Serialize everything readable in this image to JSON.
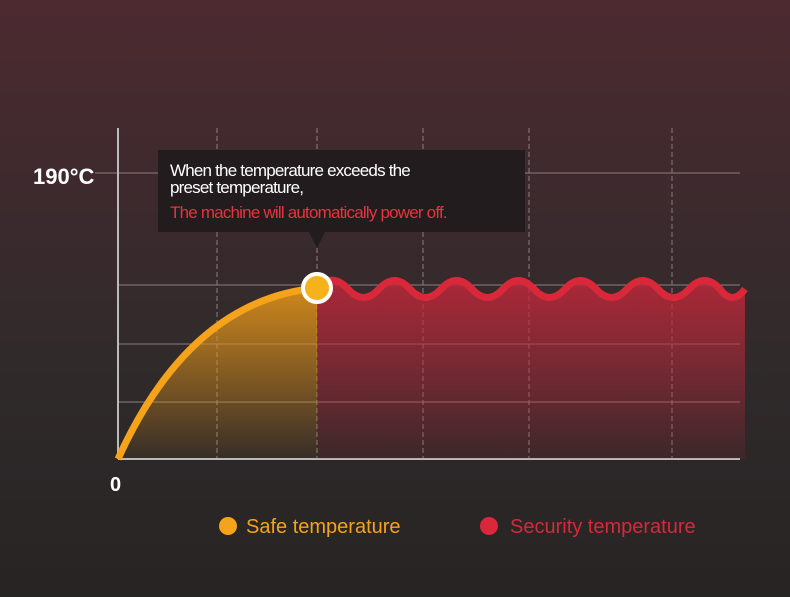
{
  "axis": {
    "y_label": "190°C",
    "origin_label": "0"
  },
  "tooltip": {
    "lines": [
      "When the temperature exceeds the",
      "preset temperature,"
    ],
    "warning": "The machine will automatically power off."
  },
  "legend": [
    {
      "label": "Safe temperature",
      "color": "#f5a31a"
    },
    {
      "label": "Security temperature",
      "color": "#d8283a"
    }
  ]
}
